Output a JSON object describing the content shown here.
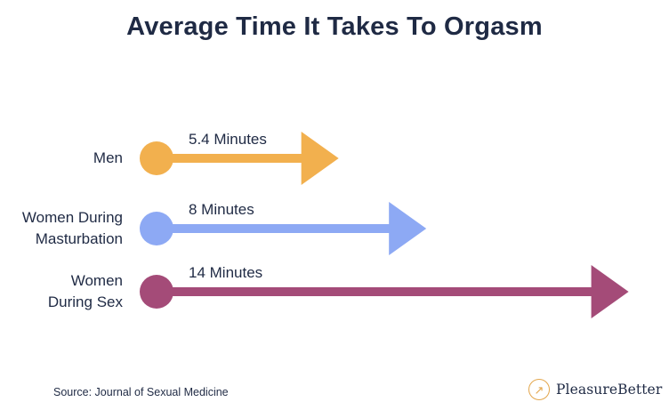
{
  "chart_data": {
    "type": "bar",
    "title": "Average Time It Takes To Orgasm",
    "categories": [
      "Men",
      "Women During Masturbation",
      "Women During Sex"
    ],
    "category_lines": [
      [
        "Men"
      ],
      [
        "Women During",
        "Masturbation"
      ],
      [
        "Women",
        "During Sex"
      ]
    ],
    "values": [
      5.4,
      8,
      14
    ],
    "unit": "Minutes",
    "data_labels": [
      "5.4 Minutes",
      "8 Minutes",
      "14 Minutes"
    ],
    "colors": [
      "#f2b04e",
      "#8da9f4",
      "#a44b78"
    ]
  },
  "source": "Source: Journal of Sexual Medicine",
  "brand": {
    "name": "PleasureBetter",
    "icon": "arrow-up-right-icon",
    "color": "#e3a64c"
  }
}
